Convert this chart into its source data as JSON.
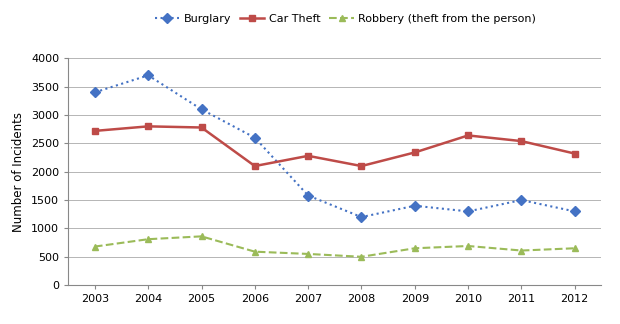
{
  "years": [
    2003,
    2004,
    2005,
    2006,
    2007,
    2008,
    2009,
    2010,
    2011,
    2012
  ],
  "burglary": [
    3400,
    3700,
    3100,
    2600,
    1580,
    1200,
    1400,
    1300,
    1500,
    1300
  ],
  "car_theft": [
    2720,
    2800,
    2780,
    2100,
    2280,
    2100,
    2340,
    2640,
    2540,
    2320
  ],
  "robbery": [
    680,
    810,
    860,
    590,
    550,
    500,
    650,
    690,
    610,
    650
  ],
  "burglary_color": "#4472C4",
  "car_theft_color": "#BE4B48",
  "robbery_color": "#9BBB59",
  "ylabel": "Number of Incidents",
  "ylim": [
    0,
    4000
  ],
  "yticks": [
    0,
    500,
    1000,
    1500,
    2000,
    2500,
    3000,
    3500,
    4000
  ],
  "legend_labels": [
    "Burglary",
    "Car Theft",
    "Robbery (theft from the person)"
  ],
  "background_color": "#ffffff",
  "grid_color": "#aaaaaa"
}
